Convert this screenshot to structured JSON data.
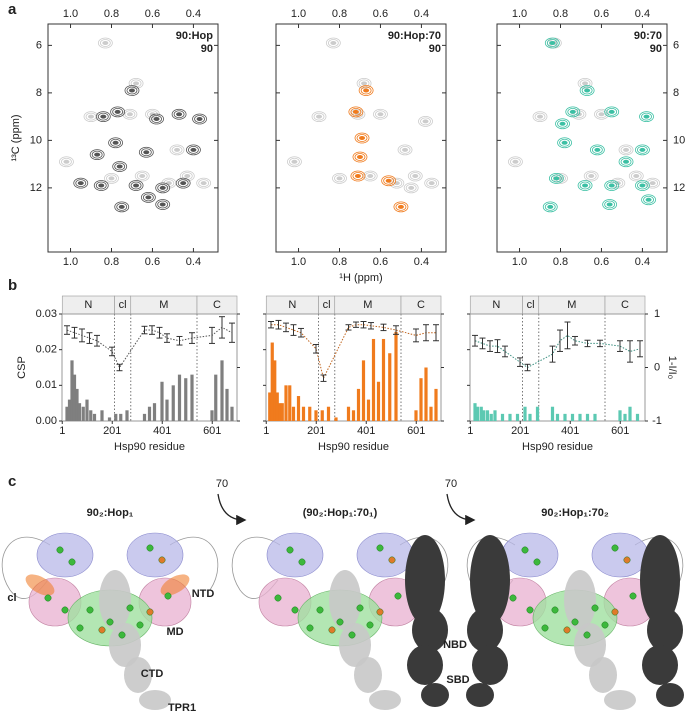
{
  "panel_labels": [
    "a",
    "b",
    "c"
  ],
  "chart_data": [
    {
      "type": "scatter",
      "ylabel": "¹³C (ppm)",
      "ytick_side": "left",
      "xlim": [
        1.11,
        0.28
      ],
      "ylim": [
        14.7,
        5.1
      ],
      "xticks": [
        {
          "value": 1,
          "label": "1.0"
        },
        0.8,
        0.6,
        0.4
      ],
      "yticks": [
        6,
        8,
        10,
        12
      ],
      "series": [
        {
          "name": "90:Hop",
          "color": "#555555",
          "x": [
            0.7,
            0.77,
            0.78,
            0.76,
            0.58,
            0.68,
            0.55,
            0.85,
            0.95,
            0.62,
            0.75,
            0.55,
            0.45,
            0.4,
            0.63,
            0.37,
            0.47,
            0.84,
            0.87
          ],
          "y": [
            7.9,
            8.8,
            10.1,
            11.1,
            9.1,
            11.9,
            12.0,
            11.9,
            11.8,
            12.4,
            12.8,
            12.7,
            11.8,
            10.4,
            10.5,
            9.1,
            8.9,
            9.0,
            10.6
          ]
        },
        {
          "name": "90",
          "color": "#cccccc",
          "x": [
            0.83,
            0.68,
            0.9,
            0.43,
            0.65,
            0.8,
            1.02,
            0.6,
            0.35,
            0.52,
            0.71,
            0.48
          ],
          "y": [
            5.9,
            7.6,
            9.0,
            11.5,
            11.5,
            11.6,
            10.9,
            8.9,
            11.8,
            11.8,
            8.9,
            10.4
          ]
        }
      ]
    },
    {
      "type": "scatter",
      "xlabel": "¹H (ppm)",
      "ytick_side": "none",
      "xlim": [
        1.11,
        0.28
      ],
      "ylim": [
        14.7,
        5.1
      ],
      "xticks": [
        {
          "value": 1,
          "label": "1.0"
        },
        0.8,
        0.6,
        0.4
      ],
      "yticks": [
        6,
        8,
        10,
        12
      ],
      "series": [
        {
          "name": "90:Hop:70",
          "color": "#f07b1d",
          "x": [
            0.67,
            0.72,
            0.69,
            0.7,
            0.71,
            0.5,
            0.56
          ],
          "y": [
            7.9,
            8.8,
            9.9,
            10.7,
            11.5,
            12.8,
            11.7
          ]
        },
        {
          "name": "90",
          "color": "#cccccc",
          "x": [
            0.83,
            0.68,
            0.9,
            0.43,
            0.65,
            0.8,
            1.02,
            0.6,
            0.35,
            0.52,
            0.71,
            0.48,
            0.45,
            0.38
          ],
          "y": [
            5.9,
            7.6,
            9.0,
            11.5,
            11.5,
            11.6,
            10.9,
            8.9,
            11.8,
            11.8,
            8.9,
            10.4,
            12.0,
            9.2
          ]
        }
      ]
    },
    {
      "type": "scatter",
      "ytick_side": "right",
      "xlim": [
        1.11,
        0.28
      ],
      "ylim": [
        14.7,
        5.1
      ],
      "xticks": [
        {
          "value": 1,
          "label": "1.0"
        },
        0.8,
        0.6,
        0.4
      ],
      "yticks": [
        6,
        8,
        10,
        12
      ],
      "series": [
        {
          "name": "90:70",
          "color": "#3cc0a4",
          "x": [
            0.84,
            0.67,
            0.55,
            0.74,
            0.79,
            0.78,
            0.62,
            0.38,
            0.4,
            0.48,
            0.82,
            0.68,
            0.55,
            0.4,
            0.37,
            0.56,
            0.85
          ],
          "y": [
            5.9,
            7.9,
            8.8,
            8.8,
            9.3,
            10.1,
            10.4,
            9.0,
            10.4,
            10.9,
            11.6,
            11.9,
            11.9,
            11.9,
            12.5,
            12.7,
            12.8
          ]
        },
        {
          "name": "90",
          "color": "#cccccc",
          "x": [
            0.83,
            0.68,
            0.9,
            0.43,
            0.65,
            0.8,
            1.02,
            0.6,
            0.35,
            0.52,
            0.71,
            0.48
          ],
          "y": [
            5.9,
            7.6,
            9.0,
            11.5,
            11.5,
            11.6,
            10.9,
            8.9,
            11.8,
            11.8,
            8.9,
            10.4
          ]
        }
      ]
    },
    {
      "type": "bar",
      "ylabel": "CSP",
      "xlabel": "Hsp90 residue",
      "ytick_labels": true,
      "y2tick_labels": false,
      "xlim": [
        0,
        700
      ],
      "ylim": [
        0,
        0.03
      ],
      "y2lim": [
        -1,
        1
      ],
      "xticks": [
        1,
        201,
        401,
        601
      ],
      "yticks": [
        {
          "value": 0,
          "label": "0.00"
        },
        0.01,
        0.02,
        0.03
      ],
      "y2ticks": [
        -1,
        0,
        1
      ],
      "domains": [
        {
          "label": "N",
          "start": 1,
          "end": 210
        },
        {
          "label": "cl",
          "start": 210,
          "end": 275
        },
        {
          "label": "M",
          "start": 275,
          "end": 540
        },
        {
          "label": "C",
          "start": 540,
          "end": 700
        }
      ],
      "series": [
        {
          "color": "#7f7f7f",
          "x": [
            20,
            30,
            40,
            50,
            60,
            70,
            85,
            100,
            115,
            130,
            160,
            190,
            215,
            235,
            260,
            330,
            350,
            370,
            400,
            420,
            445,
            470,
            495,
            520,
            600,
            615,
            640,
            660,
            680
          ],
          "values": [
            0.004,
            0.006,
            0.017,
            0.013,
            0.009,
            0.005,
            0.004,
            0.006,
            0.003,
            0.002,
            0.003,
            0.001,
            0.002,
            0.002,
            0.003,
            0.002,
            0.004,
            0.005,
            0.011,
            0.006,
            0.01,
            0.013,
            0.012,
            0.013,
            0.003,
            0.013,
            0.017,
            0.009,
            0.004
          ]
        },
        {
          "color": "#555555",
          "axis": "y2",
          "x": [
            20,
            50,
            80,
            110,
            140,
            200,
            230,
            330,
            360,
            390,
            420,
            470,
            520,
            600,
            640,
            680
          ],
          "values": [
            0.7,
            0.65,
            0.6,
            0.55,
            0.5,
            0.3,
            0.0,
            0.7,
            0.7,
            0.65,
            0.55,
            0.5,
            0.55,
            0.6,
            0.75,
            0.65
          ],
          "errors": [
            0.08,
            0.1,
            0.12,
            0.1,
            0.1,
            0.08,
            0.06,
            0.07,
            0.08,
            0.1,
            0.08,
            0.08,
            0.1,
            0.15,
            0.2,
            0.18
          ]
        }
      ]
    },
    {
      "type": "bar",
      "xlabel": "Hsp90 residue",
      "ytick_labels": false,
      "y2tick_labels": false,
      "xlim": [
        0,
        700
      ],
      "ylim": [
        0,
        0.03
      ],
      "y2lim": [
        -1,
        1
      ],
      "xticks": [
        1,
        201,
        401,
        601
      ],
      "yticks": [
        {
          "value": 0,
          "label": "0.00"
        },
        0.01,
        0.02,
        0.03
      ],
      "y2ticks": [
        -1,
        0,
        1
      ],
      "domains": [
        {
          "label": "N",
          "start": 1,
          "end": 210
        },
        {
          "label": "cl",
          "start": 210,
          "end": 275
        },
        {
          "label": "M",
          "start": 275,
          "end": 540
        },
        {
          "label": "C",
          "start": 540,
          "end": 700
        }
      ],
      "series": [
        {
          "color": "#f07b1d",
          "x": [
            15,
            25,
            35,
            45,
            55,
            65,
            80,
            95,
            110,
            130,
            150,
            175,
            200,
            225,
            250,
            280,
            330,
            350,
            370,
            390,
            410,
            430,
            450,
            470,
            495,
            520,
            600,
            620,
            640,
            660,
            680
          ],
          "values": [
            0.008,
            0.022,
            0.017,
            0.008,
            0.005,
            0.005,
            0.01,
            0.01,
            0.004,
            0.007,
            0.004,
            0.004,
            0.003,
            0.003,
            0.004,
            0.001,
            0.004,
            0.003,
            0.009,
            0.017,
            0.006,
            0.023,
            0.011,
            0.023,
            0.019,
            0.025,
            0.003,
            0.012,
            0.015,
            0.004,
            0.009
          ]
        },
        {
          "color": "#c0621a",
          "axis": "y2",
          "x": [
            20,
            50,
            80,
            110,
            140,
            200,
            230,
            330,
            360,
            390,
            420,
            470,
            520,
            600,
            640,
            680
          ],
          "values": [
            0.8,
            0.8,
            0.75,
            0.7,
            0.65,
            0.35,
            -0.2,
            0.75,
            0.8,
            0.8,
            0.78,
            0.75,
            0.7,
            0.6,
            0.65,
            0.65
          ],
          "errors": [
            0.06,
            0.08,
            0.08,
            0.1,
            0.08,
            0.08,
            0.06,
            0.05,
            0.05,
            0.06,
            0.06,
            0.06,
            0.08,
            0.12,
            0.15,
            0.15
          ]
        }
      ]
    },
    {
      "type": "bar",
      "xlabel": "Hsp90 residue",
      "y2label": "1-I/I₀",
      "ytick_labels": false,
      "y2tick_labels": true,
      "xlim": [
        0,
        700
      ],
      "ylim": [
        0,
        0.03
      ],
      "y2lim": [
        -1,
        1
      ],
      "xticks": [
        1,
        201,
        401,
        601
      ],
      "yticks": [
        {
          "value": 0,
          "label": "0.00"
        },
        0.01,
        0.02,
        0.03
      ],
      "y2ticks": [
        -1,
        0,
        1
      ],
      "domains": [
        {
          "label": "N",
          "start": 1,
          "end": 210
        },
        {
          "label": "cl",
          "start": 210,
          "end": 275
        },
        {
          "label": "M",
          "start": 275,
          "end": 540
        },
        {
          "label": "C",
          "start": 540,
          "end": 700
        }
      ],
      "series": [
        {
          "color": "#5cc9b2",
          "x": [
            20,
            30,
            45,
            55,
            70,
            85,
            100,
            130,
            160,
            190,
            220,
            240,
            270,
            330,
            350,
            380,
            410,
            440,
            470,
            500,
            600,
            620,
            640,
            670
          ],
          "values": [
            0.005,
            0.004,
            0.004,
            0.003,
            0.003,
            0.002,
            0.003,
            0.002,
            0.002,
            0.002,
            0.004,
            0.002,
            0.004,
            0.004,
            0.002,
            0.002,
            0.002,
            0.002,
            0.002,
            0.002,
            0.003,
            0.002,
            0.004,
            0.002
          ]
        },
        {
          "color": "#3a8f80",
          "axis": "y2",
          "x": [
            20,
            50,
            80,
            110,
            140,
            200,
            230,
            330,
            360,
            390,
            420,
            470,
            520,
            600,
            640,
            680
          ],
          "values": [
            0.5,
            0.45,
            0.4,
            0.4,
            0.3,
            0.1,
            0.0,
            0.25,
            0.5,
            0.6,
            0.5,
            0.45,
            0.45,
            0.4,
            0.3,
            0.35
          ],
          "errors": [
            0.1,
            0.1,
            0.1,
            0.12,
            0.1,
            0.08,
            0.06,
            0.15,
            0.2,
            0.25,
            0.08,
            0.06,
            0.06,
            0.1,
            0.2,
            0.15
          ]
        }
      ]
    }
  ],
  "panel_c": {
    "states": [
      {
        "title": "90₂:Hop₁"
      },
      {
        "title": "(90₂:Hop₁:70₁)"
      },
      {
        "title": "90₂:Hop₁:70₂"
      }
    ],
    "arrows": [
      {
        "label": "70"
      },
      {
        "label": "70"
      }
    ],
    "domain_labels": [
      {
        "text": "cl",
        "color": "#888888"
      },
      {
        "text": "NTD",
        "color": "#8888cc"
      },
      {
        "text": "MD",
        "color": "#d080b0"
      },
      {
        "text": "CTD",
        "color": "#55bb55"
      },
      {
        "text": "TPR1",
        "color": "#bbbbbb"
      },
      {
        "text": "NBD",
        "color": "#333333"
      },
      {
        "text": "SBD",
        "color": "#333333"
      }
    ]
  }
}
